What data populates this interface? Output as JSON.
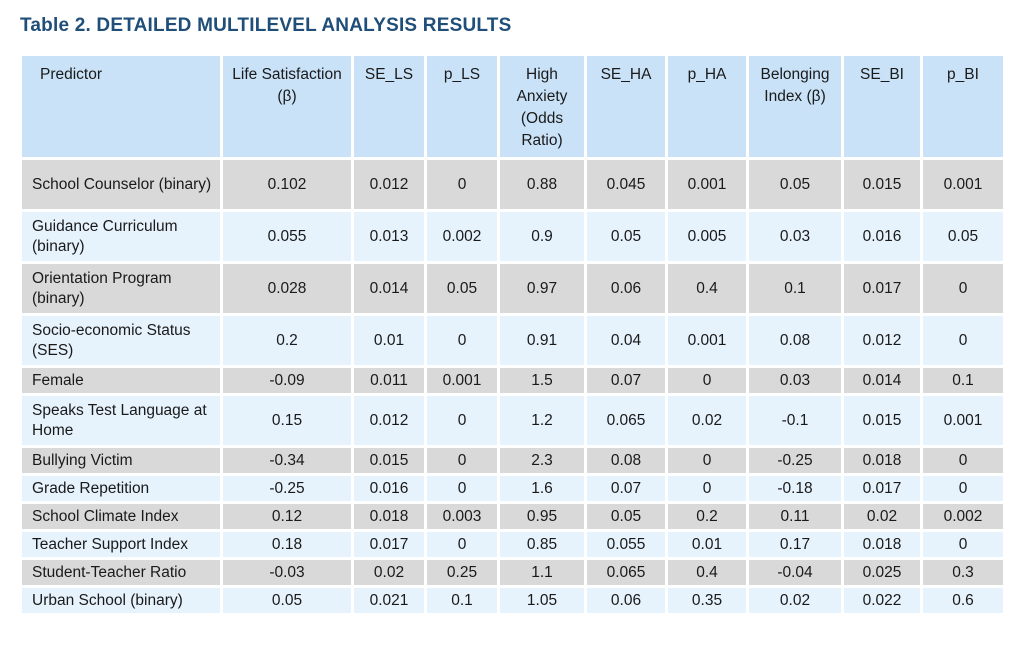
{
  "title": "Table 2. DETAILED MULTILEVEL ANALYSIS RESULTS",
  "columns": [
    "Predictor",
    "Life Satisfaction (β)",
    "SE_LS",
    "p_LS",
    "High Anxiety (Odds Ratio)",
    "SE_HA",
    "p_HA",
    "Belonging Index (β)",
    "SE_BI",
    "p_BI"
  ],
  "rows": [
    [
      "School Counselor (binary)",
      "0.102",
      "0.012",
      "0",
      "0.88",
      "0.045",
      "0.001",
      "0.05",
      "0.015",
      "0.001"
    ],
    [
      "Guidance Curriculum (binary)",
      "0.055",
      "0.013",
      "0.002",
      "0.9",
      "0.05",
      "0.005",
      "0.03",
      "0.016",
      "0.05"
    ],
    [
      "Orientation Program (binary)",
      "0.028",
      "0.014",
      "0.05",
      "0.97",
      "0.06",
      "0.4",
      "0.1",
      "0.017",
      "0"
    ],
    [
      "Socio-economic Status (SES)",
      "0.2",
      "0.01",
      "0",
      "0.91",
      "0.04",
      "0.001",
      "0.08",
      "0.012",
      "0"
    ],
    [
      "Female",
      "-0.09",
      "0.011",
      "0.001",
      "1.5",
      "0.07",
      "0",
      "0.03",
      "0.014",
      "0.1"
    ],
    [
      "Speaks Test Language at Home",
      "0.15",
      "0.012",
      "0",
      "1.2",
      "0.065",
      "0.02",
      "-0.1",
      "0.015",
      "0.001"
    ],
    [
      "Bullying Victim",
      "-0.34",
      "0.015",
      "0",
      "2.3",
      "0.08",
      "0",
      "-0.25",
      "0.018",
      "0"
    ],
    [
      "Grade Repetition",
      "-0.25",
      "0.016",
      "0",
      "1.6",
      "0.07",
      "0",
      "-0.18",
      "0.017",
      "0"
    ],
    [
      "School Climate Index",
      "0.12",
      "0.018",
      "0.003",
      "0.95",
      "0.05",
      "0.2",
      "0.11",
      "0.02",
      "0.002"
    ],
    [
      "Teacher Support Index",
      "0.18",
      "0.017",
      "0",
      "0.85",
      "0.055",
      "0.01",
      "0.17",
      "0.018",
      "0"
    ],
    [
      "Student-Teacher Ratio",
      "-0.03",
      "0.02",
      "0.25",
      "1.1",
      "0.065",
      "0.4",
      "-0.04",
      "0.025",
      "0.3"
    ],
    [
      "Urban School (binary)",
      "0.05",
      "0.021",
      "0.1",
      "1.05",
      "0.06",
      "0.35",
      "0.02",
      "0.022",
      "0.6"
    ]
  ]
}
